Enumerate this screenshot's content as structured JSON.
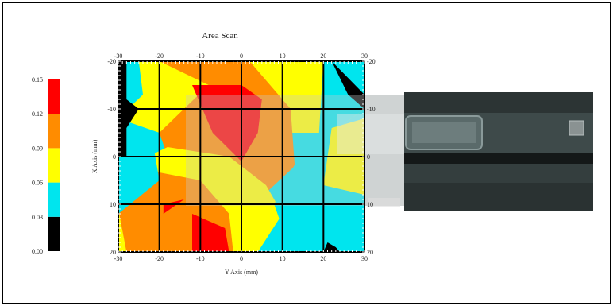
{
  "chart_data": {
    "type": "heatmap",
    "title": "Area Scan",
    "xlabel": "Y Axis (mm)",
    "ylabel": "X Axis (mm)",
    "x_range": [
      -30,
      30
    ],
    "y_range": [
      -20,
      20
    ],
    "x_ticks": [
      "-30",
      "-20",
      "-10",
      "0",
      "10",
      "20",
      "30"
    ],
    "y_ticks": [
      "-20",
      "-10",
      "0",
      "10",
      "20"
    ],
    "grid": true,
    "colorbar": {
      "placement": "left",
      "levels": [
        0.0,
        0.03,
        0.06,
        0.09,
        0.12,
        0.15
      ],
      "labels": [
        "0.00",
        "0.03",
        "0.06",
        "0.09",
        "0.12",
        "0.15"
      ],
      "colors": [
        "#000000",
        "#00e5ee",
        "#ffff00",
        "#ff8c00",
        "#ff0000"
      ]
    },
    "regions": [
      {
        "level": 2,
        "color": "#ffff00",
        "points": [
          [
            -30,
            -20
          ],
          [
            30,
            -20
          ],
          [
            30,
            -10
          ],
          [
            22,
            -5
          ],
          [
            12,
            -5
          ],
          [
            0,
            -15
          ],
          [
            -20,
            -5
          ],
          [
            -30,
            -8
          ]
        ]
      },
      {
        "level": 3,
        "color": "#ff8c00",
        "points": [
          [
            -20,
            -20
          ],
          [
            2,
            -20
          ],
          [
            12,
            -10
          ],
          [
            13,
            2
          ],
          [
            3,
            10
          ],
          [
            -3,
            20
          ],
          [
            -10,
            20
          ],
          [
            -20,
            -5
          ],
          [
            -8,
            -15
          ]
        ]
      },
      {
        "level": 2,
        "color": "#ffff00",
        "points": [
          [
            -30,
            3
          ],
          [
            -18,
            -2
          ],
          [
            -3,
            0
          ],
          [
            6,
            6
          ],
          [
            10,
            12
          ],
          [
            4,
            20
          ],
          [
            -30,
            20
          ]
        ]
      },
      {
        "level": 3,
        "color": "#ff8c00",
        "points": [
          [
            -30,
            11
          ],
          [
            -22,
            3
          ],
          [
            -10,
            5
          ],
          [
            -3,
            12
          ],
          [
            -2,
            20
          ],
          [
            -28,
            20
          ]
        ]
      },
      {
        "level": 1,
        "color": "#00e5ee",
        "points": [
          [
            -30,
            -20
          ],
          [
            -25,
            -20
          ],
          [
            -24,
            -13
          ],
          [
            -30,
            -8
          ]
        ]
      },
      {
        "level": 1,
        "color": "#00e5ee",
        "points": [
          [
            -30,
            -8
          ],
          [
            -22,
            -5
          ],
          [
            -20,
            5
          ],
          [
            -30,
            12
          ]
        ]
      },
      {
        "level": 1,
        "color": "#00e5ee",
        "points": [
          [
            20,
            -20
          ],
          [
            30,
            -20
          ],
          [
            30,
            -10
          ],
          [
            22,
            -5
          ],
          [
            14,
            0
          ],
          [
            8,
            10
          ],
          [
            10,
            15
          ],
          [
            16,
            20
          ],
          [
            30,
            20
          ],
          [
            30,
            8
          ],
          [
            24,
            10
          ],
          [
            18,
            8
          ]
        ]
      },
      {
        "level": 2,
        "color": "#ffff00",
        "points": [
          [
            22,
            -6
          ],
          [
            30,
            -8
          ],
          [
            30,
            8
          ],
          [
            20,
            6
          ]
        ]
      },
      {
        "level": 4,
        "color": "#ff0000",
        "points": [
          [
            -12,
            -15
          ],
          [
            0,
            -15
          ],
          [
            5,
            -12
          ],
          [
            4,
            -5
          ],
          [
            0,
            1
          ],
          [
            -7,
            -5
          ]
        ]
      },
      {
        "level": 4,
        "color": "#ff0000",
        "points": [
          [
            -19,
            10
          ],
          [
            -14,
            9
          ],
          [
            -19,
            12
          ]
        ]
      },
      {
        "level": 4,
        "color": "#ff0000",
        "points": [
          [
            -12,
            12
          ],
          [
            -4,
            15
          ],
          [
            -3,
            20
          ],
          [
            -12,
            20
          ]
        ]
      },
      {
        "level": 0,
        "color": "#000000",
        "points": [
          [
            -30,
            -20
          ],
          [
            -28,
            -20
          ],
          [
            -28,
            -12
          ],
          [
            -25,
            -10
          ],
          [
            -28,
            -6
          ],
          [
            -28,
            0
          ],
          [
            -30,
            0
          ]
        ]
      },
      {
        "level": 0,
        "color": "#000000",
        "points": [
          [
            22,
            -20
          ],
          [
            30,
            -13
          ],
          [
            30,
            -10
          ],
          [
            26,
            -13
          ]
        ]
      },
      {
        "level": 0,
        "color": "#000000",
        "points": [
          [
            20,
            20
          ],
          [
            21,
            18
          ],
          [
            23,
            19
          ],
          [
            24,
            20
          ]
        ]
      }
    ]
  },
  "overlay_photo": {
    "description_colors": [
      "#1a1a1a",
      "#4a5a5a",
      "#6a7a7a",
      "#c8cccc"
    ]
  }
}
